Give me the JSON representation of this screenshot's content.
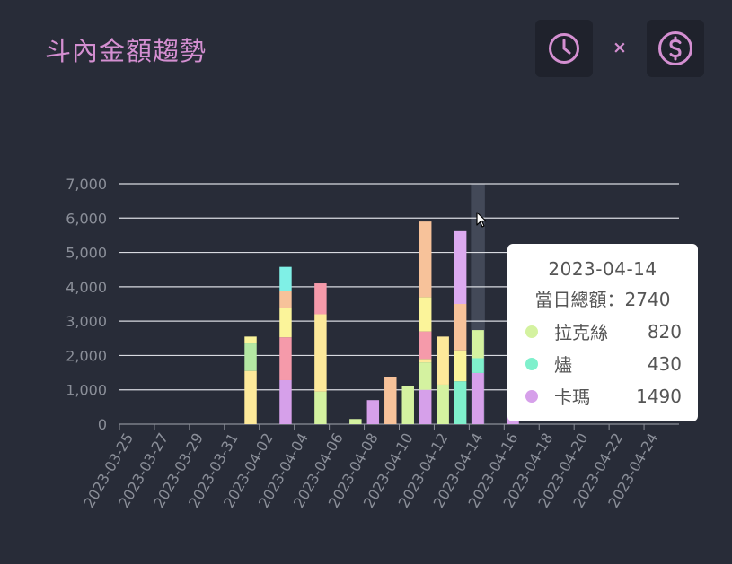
{
  "header": {
    "title": "斗內金額趨勢",
    "separator": "×",
    "time_button_icon": "clock-icon",
    "money_button_icon": "dollar-circle-icon"
  },
  "colors": {
    "accent": "#d48fd1",
    "background": "#282c38",
    "button_bg": "#1f222c"
  },
  "tooltip": {
    "date": "2023-04-14",
    "total": "當日總額：2740",
    "rows": [
      {
        "name": "拉克絲",
        "value": "820",
        "color": "#d4f2a0"
      },
      {
        "name": "燼",
        "value": "430",
        "color": "#7ff0cc"
      },
      {
        "name": "卡瑪",
        "value": "1490",
        "color": "#d6a0ea"
      }
    ]
  },
  "chart_data": {
    "type": "bar",
    "stacked": true,
    "ylim": [
      0,
      7000
    ],
    "y_ticks": [
      "0",
      "1,000",
      "2,000",
      "3,000",
      "4,000",
      "5,000",
      "6,000",
      "7,000"
    ],
    "y_tick_values": [
      0,
      1000,
      2000,
      3000,
      4000,
      5000,
      6000,
      7000
    ],
    "x_labels": [
      "2023-03-25",
      "2023-03-27",
      "2023-03-29",
      "2023-03-31",
      "2023-04-02",
      "2023-04-04",
      "2023-04-06",
      "2023-04-08",
      "2023-04-10",
      "2023-04-12",
      "2023-04-14",
      "2023-04-16",
      "2023-04-18",
      "2023-04-20",
      "2023-04-22",
      "2023-04-24"
    ],
    "categories": [
      "2023-03-25",
      "2023-03-26",
      "2023-03-27",
      "2023-03-28",
      "2023-03-29",
      "2023-03-30",
      "2023-03-31",
      "2023-04-01",
      "2023-04-02",
      "2023-04-03",
      "2023-04-04",
      "2023-04-05",
      "2023-04-06",
      "2023-04-07",
      "2023-04-08",
      "2023-04-09",
      "2023-04-10",
      "2023-04-11",
      "2023-04-12",
      "2023-04-13",
      "2023-04-14",
      "2023-04-15",
      "2023-04-16",
      "2023-04-17",
      "2023-04-18",
      "2023-04-19",
      "2023-04-20",
      "2023-04-21",
      "2023-04-22",
      "2023-04-23",
      "2023-04-24",
      "2023-04-25"
    ],
    "highlight_category": "2023-04-14",
    "grid": true,
    "series": [
      {
        "name": "",
        "color": "#d6a0ea",
        "values": [
          0,
          0,
          0,
          0,
          0,
          0,
          0,
          0,
          0,
          1280,
          0,
          0,
          0,
          0,
          700,
          0,
          0,
          1000,
          0,
          0,
          1490,
          0,
          330,
          0,
          0,
          0,
          0,
          0,
          0,
          0,
          0,
          0
        ]
      },
      {
        "name": "",
        "color": "#7ff0cc",
        "values": [
          0,
          0,
          0,
          0,
          0,
          0,
          0,
          0,
          0,
          0,
          0,
          0,
          0,
          0,
          0,
          0,
          0,
          0,
          0,
          1250,
          430,
          0,
          0,
          0,
          0,
          0,
          0,
          0,
          0,
          0,
          0,
          0
        ]
      },
      {
        "name": "",
        "color": "#d4f2a0",
        "values": [
          0,
          0,
          0,
          0,
          0,
          0,
          0,
          0,
          0,
          0,
          0,
          950,
          0,
          150,
          0,
          0,
          1100,
          800,
          1150,
          0,
          820,
          0,
          0,
          0,
          0,
          0,
          0,
          0,
          0,
          0,
          0,
          0
        ]
      },
      {
        "name": "",
        "color": "#85d4f5",
        "values": [
          0,
          0,
          0,
          0,
          0,
          0,
          0,
          0,
          0,
          0,
          0,
          0,
          0,
          0,
          0,
          0,
          0,
          0,
          0,
          0,
          0,
          0,
          800,
          0,
          0,
          0,
          0,
          0,
          0,
          0,
          0,
          0
        ]
      },
      {
        "name": "",
        "color": "#fde99a",
        "values": [
          0,
          0,
          0,
          0,
          0,
          0,
          0,
          1550,
          0,
          0,
          0,
          2250,
          0,
          0,
          0,
          0,
          0,
          100,
          1400,
          0,
          0,
          0,
          0,
          0,
          0,
          0,
          0,
          0,
          0,
          0,
          0,
          0
        ]
      },
      {
        "name": "",
        "color": "#b4e8a3",
        "values": [
          0,
          0,
          0,
          0,
          0,
          0,
          0,
          800,
          0,
          0,
          0,
          0,
          0,
          0,
          0,
          0,
          0,
          0,
          0,
          0,
          0,
          0,
          0,
          0,
          0,
          0,
          0,
          0,
          0,
          0,
          0,
          0
        ]
      },
      {
        "name": "",
        "color": "#f59aaa",
        "values": [
          0,
          0,
          0,
          0,
          0,
          0,
          0,
          0,
          0,
          1250,
          0,
          900,
          0,
          0,
          0,
          0,
          0,
          800,
          0,
          0,
          0,
          0,
          0,
          0,
          0,
          0,
          0,
          0,
          0,
          0,
          0,
          0
        ]
      },
      {
        "name": "",
        "color": "#fbf49a",
        "values": [
          0,
          0,
          0,
          0,
          0,
          0,
          0,
          200,
          0,
          850,
          0,
          0,
          0,
          0,
          0,
          0,
          0,
          1000,
          0,
          900,
          0,
          0,
          0,
          0,
          0,
          0,
          0,
          0,
          0,
          0,
          0,
          0
        ]
      },
      {
        "name": "",
        "color": "#f7c29a",
        "values": [
          0,
          0,
          0,
          0,
          0,
          0,
          0,
          0,
          0,
          500,
          0,
          0,
          0,
          0,
          0,
          1380,
          0,
          2200,
          0,
          1350,
          0,
          0,
          900,
          0,
          0,
          0,
          0,
          0,
          0,
          0,
          0,
          0
        ]
      },
      {
        "name": "",
        "color": "#7ff0e6",
        "values": [
          0,
          0,
          0,
          0,
          0,
          0,
          0,
          0,
          0,
          700,
          0,
          0,
          0,
          0,
          0,
          0,
          0,
          0,
          0,
          0,
          0,
          0,
          0,
          0,
          0,
          0,
          0,
          0,
          0,
          0,
          0,
          0
        ]
      },
      {
        "name": "",
        "color": "#dcaaf0",
        "values": [
          0,
          0,
          0,
          0,
          0,
          0,
          0,
          0,
          0,
          0,
          0,
          0,
          0,
          0,
          0,
          0,
          0,
          0,
          0,
          2120,
          0,
          0,
          0,
          0,
          0,
          0,
          0,
          0,
          0,
          0,
          0,
          0
        ]
      }
    ]
  }
}
